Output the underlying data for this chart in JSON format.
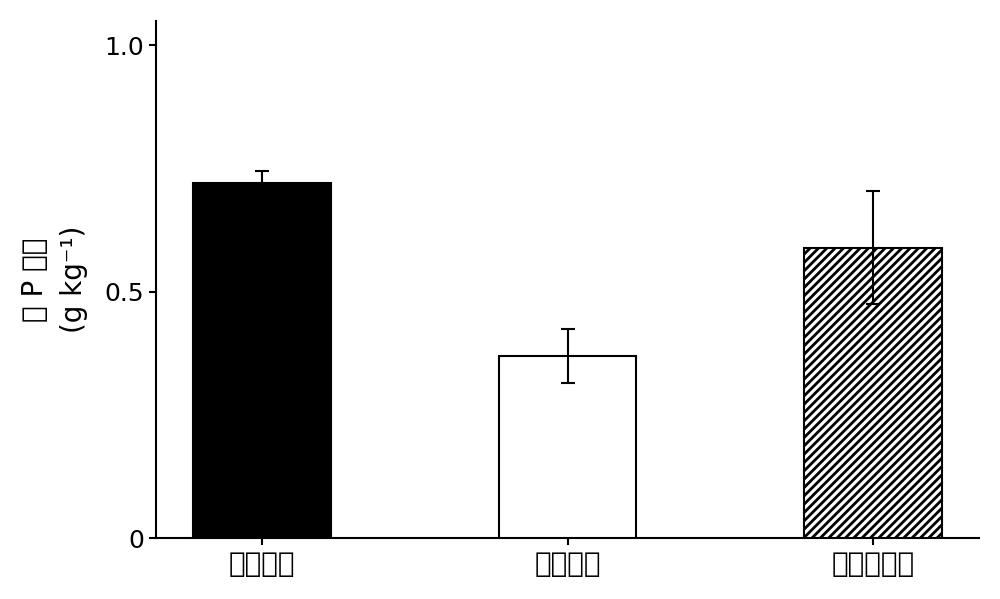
{
  "categories": [
    "健康植株",
    "发病植株",
    "治理后植株"
  ],
  "values": [
    0.72,
    0.37,
    0.59
  ],
  "errors": [
    0.025,
    0.055,
    0.115
  ],
  "bar_colors": [
    "#000000",
    "#ffffff",
    "#ffffff"
  ],
  "bar_hatches": [
    "",
    "",
    "////"
  ],
  "bar_edgecolors": [
    "#000000",
    "#000000",
    "#000000"
  ],
  "ylabel_line1": "总 P 含量",
  "ylabel_line2": "(g kg⁻¹)",
  "ylim": [
    0,
    1.05
  ],
  "yticks": [
    0,
    0.5,
    1.0
  ],
  "ytick_labels": [
    "0",
    "0.5",
    "1.0"
  ],
  "bar_width": 0.45,
  "background_color": "#ffffff",
  "figure_width": 10.0,
  "figure_height": 5.99,
  "font_size_ticks": 18,
  "font_size_ylabel": 20,
  "font_size_xlabel": 20,
  "linewidth": 1.5,
  "capsize": 5,
  "error_linewidth": 1.5,
  "hatch_linewidth": 2.0
}
